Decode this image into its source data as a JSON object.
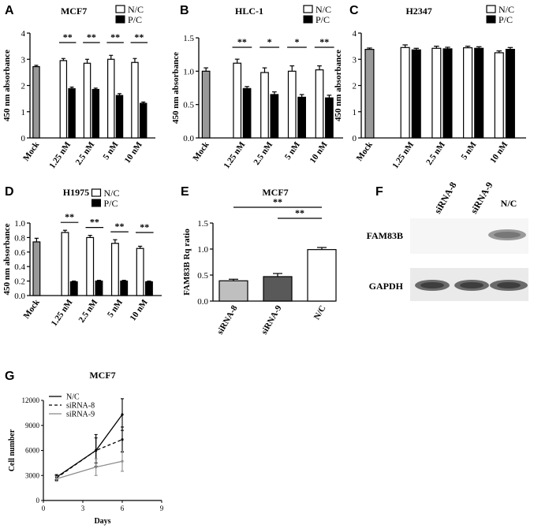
{
  "panels": [
    {
      "letter": "A",
      "title": "MCF7",
      "ylabel": "450 nm absorbance",
      "ylim": [
        0,
        4
      ],
      "yticks": [
        "0",
        "1",
        "2",
        "3",
        "4"
      ],
      "legend": [
        "N/C",
        "P/C"
      ],
      "categories": [
        "Mock",
        "1.25 nM",
        "2.5 nM",
        "5 nM",
        "10 nM"
      ],
      "mock": {
        "value": 2.72,
        "err": 0.05
      },
      "nc": [
        {
          "value": 2.95,
          "err": 0.08
        },
        {
          "value": 2.85,
          "err": 0.15
        },
        {
          "value": 3.0,
          "err": 0.15
        },
        {
          "value": 2.88,
          "err": 0.15
        }
      ],
      "pc": [
        {
          "value": 1.88,
          "err": 0.06
        },
        {
          "value": 1.85,
          "err": 0.05
        },
        {
          "value": 1.62,
          "err": 0.07
        },
        {
          "value": 1.32,
          "err": 0.05
        }
      ],
      "sig": [
        "**",
        "**",
        "**",
        "**"
      ]
    },
    {
      "letter": "B",
      "title": "HLC-1",
      "ylabel": "450 nm absorbance",
      "ylim": [
        0,
        1.5
      ],
      "yticks": [
        "0.0",
        "0.5",
        "1.0",
        "1.5"
      ],
      "legend": [
        "N/C",
        "P/C"
      ],
      "categories": [
        "Mock",
        "1.25 nM",
        "2.5 nM",
        "5 nM",
        "10 nM"
      ],
      "mock": {
        "value": 1.0,
        "err": 0.05
      },
      "nc": [
        {
          "value": 1.12,
          "err": 0.06
        },
        {
          "value": 0.98,
          "err": 0.07
        },
        {
          "value": 1.0,
          "err": 0.08
        },
        {
          "value": 1.02,
          "err": 0.06
        }
      ],
      "pc": [
        {
          "value": 0.74,
          "err": 0.03
        },
        {
          "value": 0.65,
          "err": 0.04
        },
        {
          "value": 0.61,
          "err": 0.04
        },
        {
          "value": 0.6,
          "err": 0.04
        }
      ],
      "sig": [
        "**",
        "*",
        "*",
        "**"
      ]
    },
    {
      "letter": "C",
      "title": "H2347",
      "ylabel": "450 nm absorbance",
      "ylim": [
        0,
        4
      ],
      "yticks": [
        "0",
        "1",
        "2",
        "3",
        "4"
      ],
      "legend": [
        "N/C",
        "P/C"
      ],
      "categories": [
        "Mock",
        "1.25 nM",
        "2.5 nM",
        "5 nM",
        "10 nM"
      ],
      "mock": {
        "value": 3.38,
        "err": 0.05
      },
      "nc": [
        {
          "value": 3.45,
          "err": 0.1
        },
        {
          "value": 3.42,
          "err": 0.08
        },
        {
          "value": 3.44,
          "err": 0.06
        },
        {
          "value": 3.25,
          "err": 0.07
        }
      ],
      "pc": [
        {
          "value": 3.36,
          "err": 0.06
        },
        {
          "value": 3.4,
          "err": 0.06
        },
        {
          "value": 3.42,
          "err": 0.06
        },
        {
          "value": 3.38,
          "err": 0.07
        }
      ],
      "sig": [
        "",
        "",
        "",
        ""
      ]
    },
    {
      "letter": "D",
      "title": "H1975",
      "ylabel": "450 nm absorbance",
      "ylim": [
        0,
        1.0
      ],
      "yticks": [
        "0.0",
        "0.2",
        "0.4",
        "0.6",
        "0.8",
        "1.0"
      ],
      "legend": [
        "N/C",
        "P/C"
      ],
      "categories": [
        "Mock",
        "1.25 nM",
        "2.5 nM",
        "5 nM",
        "10 nM"
      ],
      "mock": {
        "value": 0.74,
        "err": 0.05
      },
      "nc": [
        {
          "value": 0.87,
          "err": 0.03
        },
        {
          "value": 0.8,
          "err": 0.03
        },
        {
          "value": 0.72,
          "err": 0.05
        },
        {
          "value": 0.65,
          "err": 0.03
        }
      ],
      "pc": [
        {
          "value": 0.19,
          "err": 0.01
        },
        {
          "value": 0.2,
          "err": 0.01
        },
        {
          "value": 0.2,
          "err": 0.01
        },
        {
          "value": 0.19,
          "err": 0.01
        }
      ],
      "sig": [
        "**",
        "**",
        "**",
        "**"
      ]
    }
  ],
  "panelE": {
    "letter": "E",
    "title": "MCF7",
    "ylabel": "FAM83B Rq ratio",
    "ylim": [
      0,
      1.5
    ],
    "yticks": [
      "0.0",
      "0.5",
      "1.0",
      "1.5"
    ],
    "bars": [
      {
        "label": "siRNA-8",
        "value": 0.39,
        "err": 0.03,
        "color": "#bfbfbf"
      },
      {
        "label": "siRNA-9",
        "value": 0.47,
        "err": 0.06,
        "color": "#595959"
      },
      {
        "label": "N/C",
        "value": 0.99,
        "err": 0.04,
        "color": "#ffffff"
      }
    ],
    "sig": [
      "**",
      "**"
    ]
  },
  "panelF": {
    "letter": "F",
    "lanes": [
      "siRNA-8",
      "siRNA-9",
      "N/C"
    ],
    "rows": [
      "FAM83B",
      "GAPDH"
    ]
  },
  "panelG": {
    "letter": "G",
    "title": "MCF7",
    "xlabel": "Days",
    "ylabel": "Cell number",
    "xlim": [
      0,
      9
    ],
    "ylim": [
      0,
      12000
    ],
    "xticks": [
      "0",
      "3",
      "6",
      "9"
    ],
    "yticks": [
      "0",
      "3000",
      "6000",
      "9000",
      "12000"
    ],
    "series": [
      {
        "name": "N/C",
        "style": "solid",
        "color": "#000000",
        "x": [
          1,
          4,
          6
        ],
        "y": [
          2800,
          6000,
          10300
        ],
        "err": [
          300,
          1900,
          1900
        ]
      },
      {
        "name": "siRNA-8",
        "style": "dashed",
        "color": "#000000",
        "x": [
          1,
          4,
          6
        ],
        "y": [
          2700,
          6000,
          7300
        ],
        "err": [
          300,
          1500,
          1500
        ]
      },
      {
        "name": "siRNA-9",
        "style": "solid",
        "color": "#8c8c8c",
        "x": [
          1,
          4,
          6
        ],
        "y": [
          2600,
          4000,
          4700
        ],
        "err": [
          300,
          1000,
          1200
        ]
      }
    ]
  },
  "colors": {
    "mock": "#999999",
    "nc": "#ffffff",
    "pc": "#000000"
  }
}
